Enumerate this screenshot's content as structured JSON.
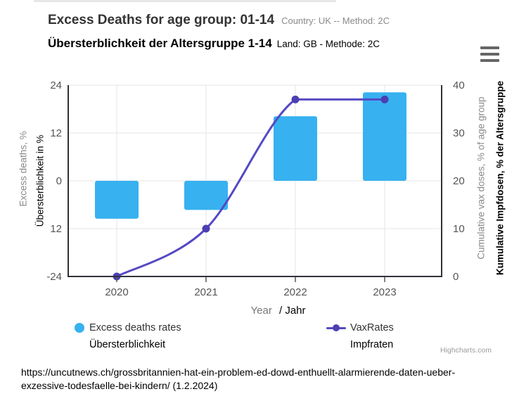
{
  "header": {
    "title": "Excess Deaths for age group: 01-14",
    "title_suffix": "Country: UK -- Method: 2C",
    "subtitle": "Übersterblichkeit der Altersgruppe 1-14",
    "subtitle_suffix": "Land: GB - Methode: 2C",
    "menu_icon": "hamburger-icon"
  },
  "chart_data": {
    "type": "combo (bar + spline), dual y-axes",
    "categories": [
      "2020",
      "2021",
      "2022",
      "2023"
    ],
    "series": [
      {
        "name": "Excess deaths rates / Übersterblichkeit",
        "type": "bar",
        "axis": "left",
        "color": "#37b1f0",
        "values": [
          -9.5,
          -7.3,
          16.2,
          22.2
        ]
      },
      {
        "name": "VaxRates / Impfraten",
        "type": "spline",
        "axis": "right",
        "color": "#5549c2",
        "marker_color": "#4b3fb3",
        "values": [
          0,
          10,
          37,
          37
        ]
      }
    ],
    "xaxis": {
      "title_en": "Year",
      "title_de": "/ Jahr"
    },
    "yaxis_left": {
      "title_en": "Excess deaths, %",
      "title_de": "Übersterblichkeit in %",
      "min": -24,
      "max": 24,
      "tick_labels": [
        "24",
        "12",
        "0",
        "12",
        "-24"
      ]
    },
    "yaxis_right": {
      "title_en": "Cumulative vax doses, % of age group",
      "title_de": "Kumulative Impfdosen, % der Altersgruppe",
      "min": 0,
      "max": 40,
      "tick_labels": [
        "40",
        "30",
        "20",
        "10",
        "0"
      ]
    },
    "grid": true,
    "grid_color": "#e6e6e6",
    "axis_color": "#32323a",
    "label_color": "#555555",
    "legend_position": "bottom"
  },
  "legend": {
    "items": [
      {
        "label": "Excess deaths rates",
        "label_de": "Übersterblichkeit"
      },
      {
        "label": "VaxRates",
        "label_de": "Impfraten"
      }
    ]
  },
  "credit": "Highcharts.com",
  "footer": {
    "line1": "https://uncutnews.ch/grossbritannien-hat-ein-problem-ed-dowd-enthuellt-alarmierende-daten-ueber-",
    "line2": "exzessive-todesfaelle-bei-kindern/ (1.2.2024)"
  }
}
